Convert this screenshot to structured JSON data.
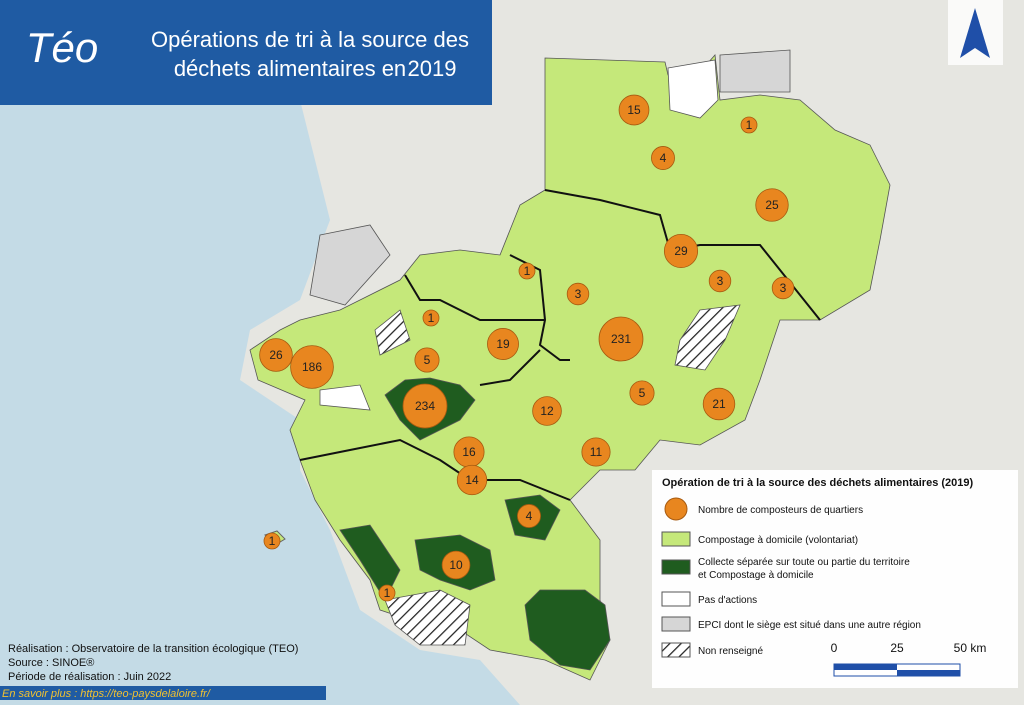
{
  "header": {
    "logo": "Téo",
    "title_line1": "Opérations de tri à la source des",
    "title_line2": "déchets alimentaires en",
    "year": "2019"
  },
  "bubbles": [
    15,
    4,
    1,
    25,
    29,
    3,
    3,
    1,
    3,
    231,
    19,
    1,
    5,
    26,
    186,
    234,
    5,
    21,
    12,
    16,
    11,
    14,
    4,
    10,
    1,
    1
  ],
  "legend": {
    "title": "Opération de tri à la source des déchets alimentaires (2019)",
    "items": [
      "Nombre de composteurs de quartiers",
      "Compostage à domicile (volontariat)",
      "Collecte séparée sur toute ou partie du territoire",
      "et Compostage à domicile",
      "Pas d'actions",
      "EPCI dont le siège est situé dans une autre région",
      "Non renseigné"
    ]
  },
  "scale": {
    "labels": [
      "0",
      "25",
      "50 km"
    ]
  },
  "credits": {
    "line1": "Réalisation : Observatoire de la transition écologique (TEO)",
    "line2": "Source : SINOE®",
    "line3": "Période de réalisation : Juin 2022"
  },
  "link": "En savoir plus : https://teo-paysdelaloire.fr/"
}
